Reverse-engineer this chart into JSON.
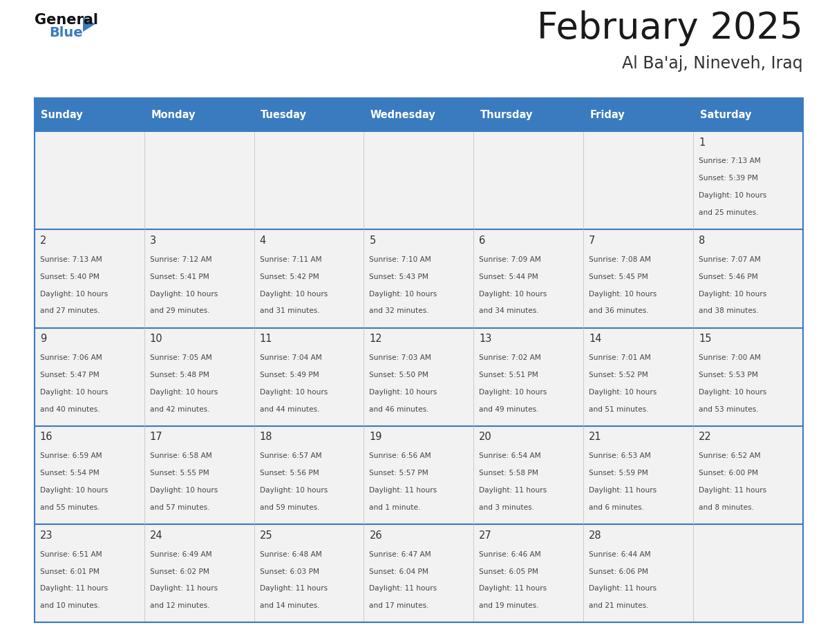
{
  "title": "February 2025",
  "subtitle": "Al Ba'aj, Nineveh, Iraq",
  "header_color": "#3a7bbf",
  "header_text_color": "#ffffff",
  "days_of_week": [
    "Sunday",
    "Monday",
    "Tuesday",
    "Wednesday",
    "Thursday",
    "Friday",
    "Saturday"
  ],
  "background_color": "#ffffff",
  "cell_bg_color": "#f2f2f2",
  "border_color": "#3a7bbf",
  "day_num_color": "#333333",
  "cell_text_color": "#444444",
  "calendar_data": [
    [
      null,
      null,
      null,
      null,
      null,
      null,
      {
        "day": 1,
        "sunrise": "7:13 AM",
        "sunset": "5:39 PM",
        "daylight": "10 hours and 25 minutes."
      }
    ],
    [
      {
        "day": 2,
        "sunrise": "7:13 AM",
        "sunset": "5:40 PM",
        "daylight": "10 hours and 27 minutes."
      },
      {
        "day": 3,
        "sunrise": "7:12 AM",
        "sunset": "5:41 PM",
        "daylight": "10 hours and 29 minutes."
      },
      {
        "day": 4,
        "sunrise": "7:11 AM",
        "sunset": "5:42 PM",
        "daylight": "10 hours and 31 minutes."
      },
      {
        "day": 5,
        "sunrise": "7:10 AM",
        "sunset": "5:43 PM",
        "daylight": "10 hours and 32 minutes."
      },
      {
        "day": 6,
        "sunrise": "7:09 AM",
        "sunset": "5:44 PM",
        "daylight": "10 hours and 34 minutes."
      },
      {
        "day": 7,
        "sunrise": "7:08 AM",
        "sunset": "5:45 PM",
        "daylight": "10 hours and 36 minutes."
      },
      {
        "day": 8,
        "sunrise": "7:07 AM",
        "sunset": "5:46 PM",
        "daylight": "10 hours and 38 minutes."
      }
    ],
    [
      {
        "day": 9,
        "sunrise": "7:06 AM",
        "sunset": "5:47 PM",
        "daylight": "10 hours and 40 minutes."
      },
      {
        "day": 10,
        "sunrise": "7:05 AM",
        "sunset": "5:48 PM",
        "daylight": "10 hours and 42 minutes."
      },
      {
        "day": 11,
        "sunrise": "7:04 AM",
        "sunset": "5:49 PM",
        "daylight": "10 hours and 44 minutes."
      },
      {
        "day": 12,
        "sunrise": "7:03 AM",
        "sunset": "5:50 PM",
        "daylight": "10 hours and 46 minutes."
      },
      {
        "day": 13,
        "sunrise": "7:02 AM",
        "sunset": "5:51 PM",
        "daylight": "10 hours and 49 minutes."
      },
      {
        "day": 14,
        "sunrise": "7:01 AM",
        "sunset": "5:52 PM",
        "daylight": "10 hours and 51 minutes."
      },
      {
        "day": 15,
        "sunrise": "7:00 AM",
        "sunset": "5:53 PM",
        "daylight": "10 hours and 53 minutes."
      }
    ],
    [
      {
        "day": 16,
        "sunrise": "6:59 AM",
        "sunset": "5:54 PM",
        "daylight": "10 hours and 55 minutes."
      },
      {
        "day": 17,
        "sunrise": "6:58 AM",
        "sunset": "5:55 PM",
        "daylight": "10 hours and 57 minutes."
      },
      {
        "day": 18,
        "sunrise": "6:57 AM",
        "sunset": "5:56 PM",
        "daylight": "10 hours and 59 minutes."
      },
      {
        "day": 19,
        "sunrise": "6:56 AM",
        "sunset": "5:57 PM",
        "daylight": "11 hours and 1 minute."
      },
      {
        "day": 20,
        "sunrise": "6:54 AM",
        "sunset": "5:58 PM",
        "daylight": "11 hours and 3 minutes."
      },
      {
        "day": 21,
        "sunrise": "6:53 AM",
        "sunset": "5:59 PM",
        "daylight": "11 hours and 6 minutes."
      },
      {
        "day": 22,
        "sunrise": "6:52 AM",
        "sunset": "6:00 PM",
        "daylight": "11 hours and 8 minutes."
      }
    ],
    [
      {
        "day": 23,
        "sunrise": "6:51 AM",
        "sunset": "6:01 PM",
        "daylight": "11 hours and 10 minutes."
      },
      {
        "day": 24,
        "sunrise": "6:49 AM",
        "sunset": "6:02 PM",
        "daylight": "11 hours and 12 minutes."
      },
      {
        "day": 25,
        "sunrise": "6:48 AM",
        "sunset": "6:03 PM",
        "daylight": "11 hours and 14 minutes."
      },
      {
        "day": 26,
        "sunrise": "6:47 AM",
        "sunset": "6:04 PM",
        "daylight": "11 hours and 17 minutes."
      },
      {
        "day": 27,
        "sunrise": "6:46 AM",
        "sunset": "6:05 PM",
        "daylight": "11 hours and 19 minutes."
      },
      {
        "day": 28,
        "sunrise": "6:44 AM",
        "sunset": "6:06 PM",
        "daylight": "11 hours and 21 minutes."
      },
      null
    ]
  ]
}
